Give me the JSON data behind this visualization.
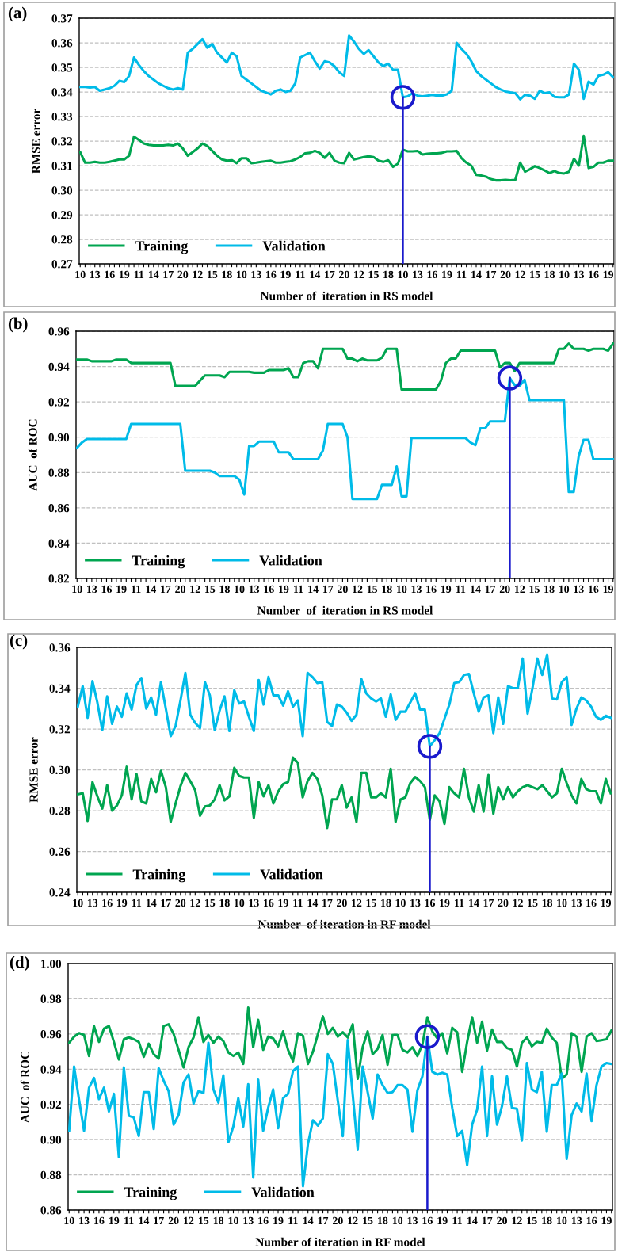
{
  "chart_data": [
    {
      "type": "line",
      "title": "(a)",
      "xlabel": "Number of  iteration in RS model",
      "ylabel": "RMSE error",
      "categories": [
        "10",
        null,
        null,
        "13",
        null,
        null,
        "16",
        null,
        null,
        "19",
        null,
        null,
        "11",
        null,
        null,
        "14",
        null,
        null,
        "17",
        null,
        null,
        "20",
        null,
        null,
        "12",
        null,
        null,
        "15",
        null,
        null,
        "18",
        null,
        null,
        "10",
        null,
        null,
        "13",
        null,
        null,
        "16",
        null,
        null,
        "19",
        null,
        null,
        "11",
        null,
        null,
        "14",
        null,
        null,
        "17",
        null,
        null,
        "20",
        null,
        null,
        "12",
        null,
        null,
        "15",
        null,
        null,
        "18",
        null,
        null,
        "10",
        null,
        null,
        "13",
        null,
        null,
        "16",
        null,
        null,
        "19",
        null,
        null,
        "11",
        null,
        null,
        "14",
        null,
        null,
        "17",
        null,
        null,
        "20",
        null,
        null,
        "12",
        null,
        null,
        "15",
        null,
        null,
        "18",
        null,
        null,
        "10",
        null,
        null,
        "13",
        null,
        null,
        "16",
        null,
        null,
        "19",
        null
      ],
      "series": [
        {
          "name": "Training",
          "color": "#00a550",
          "values": [
            0.3155,
            0.3112,
            0.3112,
            0.3115,
            0.3112,
            0.3112,
            0.3115,
            0.312,
            0.3125,
            0.3125,
            0.314,
            0.3218,
            0.3205,
            0.319,
            0.3185,
            0.3182,
            0.3182,
            0.3182,
            0.3185,
            0.3182,
            0.319,
            0.317,
            0.314,
            0.3155,
            0.317,
            0.319,
            0.318,
            0.316,
            0.314,
            0.3125,
            0.312,
            0.3122,
            0.311,
            0.313,
            0.313,
            0.311,
            0.3112,
            0.3115,
            0.3118,
            0.312,
            0.3112,
            0.3112,
            0.3115,
            0.3118,
            0.3125,
            0.3135,
            0.315,
            0.3152,
            0.316,
            0.3152,
            0.3132,
            0.3152,
            0.312,
            0.3112,
            0.311,
            0.3152,
            0.3125,
            0.313,
            0.3135,
            0.3138,
            0.3135,
            0.312,
            0.3115,
            0.3122,
            0.3095,
            0.3108,
            0.3165,
            0.3158,
            0.3158,
            0.316,
            0.3145,
            0.3148,
            0.315,
            0.315,
            0.3152,
            0.3158,
            0.3158,
            0.316,
            0.313,
            0.3112,
            0.31,
            0.3062,
            0.306,
            0.3055,
            0.3045,
            0.304,
            0.304,
            0.3042,
            0.304,
            0.3042,
            0.3112,
            0.3075,
            0.3085,
            0.3098,
            0.309,
            0.308,
            0.307,
            0.3078,
            0.307,
            0.3068,
            0.3075,
            0.3128,
            0.31,
            0.3222,
            0.309,
            0.3095,
            0.3112,
            0.3112,
            0.312,
            0.312
          ]
        },
        {
          "name": "Validation",
          "color": "#00bbe8",
          "values": [
            0.342,
            0.342,
            0.3418,
            0.342,
            0.3405,
            0.341,
            0.3415,
            0.3425,
            0.3445,
            0.344,
            0.3465,
            0.354,
            0.351,
            0.3485,
            0.3465,
            0.345,
            0.3435,
            0.3425,
            0.3415,
            0.341,
            0.3415,
            0.341,
            0.356,
            0.3575,
            0.3595,
            0.3615,
            0.358,
            0.3595,
            0.356,
            0.354,
            0.352,
            0.356,
            0.3545,
            0.3465,
            0.345,
            0.3435,
            0.342,
            0.3405,
            0.3398,
            0.339,
            0.3405,
            0.341,
            0.34,
            0.3405,
            0.3435,
            0.354,
            0.355,
            0.356,
            0.3525,
            0.3495,
            0.3525,
            0.352,
            0.3505,
            0.348,
            0.3465,
            0.363,
            0.3605,
            0.3575,
            0.3555,
            0.357,
            0.3545,
            0.352,
            0.3505,
            0.3515,
            0.349,
            0.349,
            0.3378,
            0.3382,
            0.3395,
            0.3385,
            0.3382,
            0.3385,
            0.3388,
            0.3385,
            0.3385,
            0.339,
            0.3405,
            0.36,
            0.3575,
            0.3555,
            0.3525,
            0.3485,
            0.3465,
            0.345,
            0.3435,
            0.342,
            0.341,
            0.3402,
            0.3398,
            0.3395,
            0.337,
            0.3388,
            0.3385,
            0.3372,
            0.3405,
            0.3395,
            0.3398,
            0.338,
            0.3378,
            0.3378,
            0.339,
            0.3515,
            0.349,
            0.3372,
            0.3442,
            0.343,
            0.3465,
            0.347,
            0.348,
            0.346
          ]
        }
      ],
      "ylim": [
        0.27,
        0.37
      ],
      "yticks": [
        0.27,
        0.28,
        0.29,
        {
          "value": 0.3,
          "label": "0.30"
        },
        0.31,
        0.32,
        0.33,
        0.34,
        0.35,
        0.36,
        0.37
      ],
      "grid": "y",
      "legend": "bottom left",
      "line_style": "solid"
    },
    {
      "type": "line",
      "title": "(b)",
      "xlabel": "Number  of  iteration in RS model",
      "ylabel": "AUC  of ROC",
      "categories": [
        "10",
        null,
        null,
        "13",
        null,
        null,
        "16",
        null,
        null,
        "19",
        null,
        null,
        "11",
        null,
        null,
        "14",
        null,
        null,
        "17",
        null,
        null,
        "20",
        null,
        null,
        "12",
        null,
        null,
        "15",
        null,
        null,
        "18",
        null,
        null,
        "10",
        null,
        null,
        "13",
        null,
        null,
        "16",
        null,
        null,
        "19",
        null,
        null,
        "11",
        null,
        null,
        "14",
        null,
        null,
        "17",
        null,
        null,
        "20",
        null,
        null,
        "12",
        null,
        null,
        "15",
        null,
        null,
        "18",
        null,
        null,
        "10",
        null,
        null,
        "13",
        null,
        null,
        "16",
        null,
        null,
        "19",
        null,
        null,
        "11",
        null,
        null,
        "14",
        null,
        null,
        "17",
        null,
        null,
        "20",
        null,
        null,
        "12",
        null,
        null,
        "15",
        null,
        null,
        "18",
        null,
        null,
        "10",
        null,
        null,
        "13",
        null,
        null,
        "16",
        null,
        null,
        "19",
        null
      ],
      "series": [
        {
          "name": "Training",
          "color": "#00a550",
          "values": [
            0.944,
            0.944,
            0.944,
            0.943,
            0.943,
            0.943,
            0.943,
            0.943,
            0.944,
            0.944,
            0.944,
            0.942,
            0.942,
            0.942,
            0.942,
            0.942,
            0.942,
            0.942,
            0.942,
            0.942,
            0.929,
            0.929,
            0.929,
            0.929,
            0.929,
            0.932,
            0.935,
            0.935,
            0.935,
            0.935,
            0.934,
            0.937,
            0.937,
            0.937,
            0.937,
            0.937,
            0.9365,
            0.9365,
            0.9365,
            0.938,
            0.938,
            0.938,
            0.938,
            0.939,
            0.934,
            0.934,
            0.942,
            0.943,
            0.943,
            0.939,
            0.95,
            0.95,
            0.95,
            0.95,
            0.95,
            0.9445,
            0.9445,
            0.943,
            0.9445,
            0.9435,
            0.9435,
            0.9435,
            0.945,
            0.95,
            0.95,
            0.95,
            0.927,
            0.927,
            0.927,
            0.927,
            0.927,
            0.927,
            0.927,
            0.927,
            0.932,
            0.942,
            0.9445,
            0.9445,
            0.949,
            0.949,
            0.949,
            0.949,
            0.949,
            0.949,
            0.949,
            0.949,
            0.9395,
            0.942,
            0.942,
            0.9375,
            0.942,
            0.942,
            0.942,
            0.942,
            0.942,
            0.942,
            0.942,
            0.942,
            0.95,
            0.95,
            0.953,
            0.95,
            0.95,
            0.95,
            0.949,
            0.95,
            0.95,
            0.95,
            0.949,
            0.953
          ]
        },
        {
          "name": "Validation",
          "color": "#00bbe8",
          "values": [
            0.894,
            0.897,
            0.899,
            0.899,
            0.899,
            0.899,
            0.899,
            0.899,
            0.899,
            0.899,
            0.899,
            0.9075,
            0.9075,
            0.9075,
            0.9075,
            0.9075,
            0.9075,
            0.9075,
            0.9075,
            0.9075,
            0.9075,
            0.9075,
            0.881,
            0.881,
            0.881,
            0.881,
            0.881,
            0.881,
            0.88,
            0.878,
            0.878,
            0.878,
            0.878,
            0.876,
            0.8675,
            0.895,
            0.895,
            0.8975,
            0.8975,
            0.8975,
            0.8975,
            0.8915,
            0.8915,
            0.8915,
            0.8875,
            0.8875,
            0.8875,
            0.8875,
            0.8875,
            0.8875,
            0.8925,
            0.9075,
            0.9075,
            0.9075,
            0.9075,
            0.9,
            0.865,
            0.865,
            0.865,
            0.865,
            0.865,
            0.865,
            0.873,
            0.873,
            0.873,
            0.8835,
            0.8665,
            0.8665,
            0.8995,
            0.8995,
            0.8995,
            0.8995,
            0.8995,
            0.8995,
            0.8995,
            0.8995,
            0.8995,
            0.8995,
            0.8995,
            0.8995,
            0.897,
            0.8955,
            0.905,
            0.905,
            0.909,
            0.909,
            0.909,
            0.909,
            0.9335,
            0.9295,
            0.929,
            0.9325,
            0.921,
            0.921,
            0.921,
            0.921,
            0.921,
            0.921,
            0.921,
            0.921,
            0.869,
            0.869,
            0.889,
            0.8985,
            0.8985,
            0.8875,
            0.8875,
            0.8875,
            0.8875,
            0.8875
          ]
        }
      ],
      "ylim": [
        0.82,
        0.96
      ],
      "yticks": [
        0.82,
        0.84,
        0.86,
        0.88,
        {
          "value": 0.9,
          "label": "0.90"
        },
        0.92,
        0.94,
        0.96
      ],
      "grid": "y",
      "legend": "bottom left",
      "line_style": "solid"
    },
    {
      "type": "line",
      "title": "(c)",
      "xlabel": "Number  of iteration in RF model",
      "ylabel": "RMSE error",
      "categories": [
        "10",
        null,
        null,
        "13",
        null,
        null,
        "16",
        null,
        null,
        "19",
        null,
        null,
        "11",
        null,
        null,
        "14",
        null,
        null,
        "17",
        null,
        null,
        "20",
        null,
        null,
        "12",
        null,
        null,
        "15",
        null,
        null,
        "18",
        null,
        null,
        "10",
        null,
        null,
        "13",
        null,
        null,
        "16",
        null,
        null,
        "19",
        null,
        null,
        "11",
        null,
        null,
        "14",
        null,
        null,
        "17",
        null,
        null,
        "20",
        null,
        null,
        "12",
        null,
        null,
        "15",
        null,
        null,
        "18",
        null,
        null,
        "10",
        null,
        null,
        "13",
        null,
        null,
        "16",
        null,
        null,
        "19",
        null,
        null,
        "11",
        null,
        null,
        "14",
        null,
        null,
        "17",
        null,
        null,
        "20",
        null,
        null,
        "12",
        null,
        null,
        "15",
        null,
        null,
        "18",
        null,
        null,
        "10",
        null,
        null,
        "13",
        null,
        null,
        "16",
        null,
        null,
        "19",
        null
      ],
      "series": [
        {
          "name": "Training",
          "color": "#00a550",
          "values": [
            0.288,
            0.2885,
            0.275,
            0.294,
            0.287,
            0.281,
            0.2925,
            0.28,
            0.2825,
            0.2875,
            0.3015,
            0.2855,
            0.298,
            0.2845,
            0.2835,
            0.2955,
            0.289,
            0.2995,
            0.2915,
            0.2745,
            0.2835,
            0.292,
            0.2985,
            0.2945,
            0.29,
            0.2775,
            0.282,
            0.2825,
            0.2855,
            0.2925,
            0.285,
            0.287,
            0.301,
            0.297,
            0.2962,
            0.2962,
            0.2765,
            0.294,
            0.287,
            0.2925,
            0.2835,
            0.2895,
            0.293,
            0.294,
            0.306,
            0.3035,
            0.2865,
            0.2945,
            0.2985,
            0.2955,
            0.2875,
            0.2715,
            0.2855,
            0.2855,
            0.2925,
            0.2815,
            0.2865,
            0.2745,
            0.2985,
            0.2985,
            0.2865,
            0.2865,
            0.2885,
            0.2865,
            0.3005,
            0.2745,
            0.2855,
            0.2865,
            0.2935,
            0.2965,
            0.2945,
            0.2915,
            0.2755,
            0.2875,
            0.2845,
            0.2735,
            0.2915,
            0.2885,
            0.2865,
            0.3005,
            0.2865,
            0.2795,
            0.2925,
            0.2795,
            0.2975,
            0.2785,
            0.2915,
            0.2855,
            0.2915,
            0.2865,
            0.2895,
            0.2915,
            0.2925,
            0.2915,
            0.2905,
            0.2925,
            0.2895,
            0.2865,
            0.2885,
            0.3005,
            0.2935,
            0.2875,
            0.2835,
            0.2955,
            0.2905,
            0.2895,
            0.2895,
            0.2835,
            0.2955,
            0.2885
          ]
        },
        {
          "name": "Validation",
          "color": "#00bbe8",
          "values": [
            0.331,
            0.341,
            0.3255,
            0.3435,
            0.333,
            0.3195,
            0.336,
            0.3225,
            0.331,
            0.326,
            0.3375,
            0.3295,
            0.3415,
            0.345,
            0.33,
            0.3355,
            0.327,
            0.343,
            0.33,
            0.3165,
            0.3215,
            0.334,
            0.3475,
            0.327,
            0.323,
            0.3205,
            0.343,
            0.3365,
            0.3195,
            0.329,
            0.336,
            0.319,
            0.339,
            0.3325,
            0.3335,
            0.326,
            0.319,
            0.344,
            0.332,
            0.3455,
            0.3365,
            0.3365,
            0.3315,
            0.3385,
            0.331,
            0.334,
            0.3165,
            0.3475,
            0.3455,
            0.3425,
            0.343,
            0.3235,
            0.3215,
            0.332,
            0.331,
            0.328,
            0.324,
            0.327,
            0.3445,
            0.3375,
            0.335,
            0.3335,
            0.335,
            0.326,
            0.337,
            0.3245,
            0.3285,
            0.3285,
            0.333,
            0.3375,
            0.3295,
            0.3295,
            0.3115,
            0.3145,
            0.318,
            0.325,
            0.332,
            0.3425,
            0.343,
            0.3465,
            0.347,
            0.3375,
            0.3285,
            0.3355,
            0.3365,
            0.318,
            0.3355,
            0.3225,
            0.341,
            0.34,
            0.34,
            0.3545,
            0.3275,
            0.34,
            0.3545,
            0.3465,
            0.3565,
            0.335,
            0.3345,
            0.343,
            0.3455,
            0.322,
            0.33,
            0.3355,
            0.334,
            0.331,
            0.326,
            0.3245,
            0.3265,
            0.3255
          ]
        }
      ],
      "ylim": [
        0.24,
        0.36
      ],
      "yticks": [
        0.24,
        0.26,
        0.28,
        {
          "value": 0.3,
          "label": "0.30"
        },
        0.32,
        0.34,
        0.36
      ],
      "grid": "y",
      "legend": "bottom left",
      "line_style": "solid"
    },
    {
      "type": "line",
      "title": "(d)",
      "xlabel": "Number of iteration in RF model",
      "ylabel": "AUC  of ROC",
      "categories": [
        "10",
        null,
        null,
        "13",
        null,
        null,
        "16",
        null,
        null,
        "19",
        null,
        null,
        "11",
        null,
        null,
        "14",
        null,
        null,
        "17",
        null,
        null,
        "20",
        null,
        null,
        "12",
        null,
        null,
        "15",
        null,
        null,
        "18",
        null,
        null,
        "10",
        null,
        null,
        "13",
        null,
        null,
        "16",
        null,
        null,
        "19",
        null,
        null,
        "11",
        null,
        null,
        "14",
        null,
        null,
        "17",
        null,
        null,
        "20",
        null,
        null,
        "12",
        null,
        null,
        "15",
        null,
        null,
        "18",
        null,
        null,
        "10",
        null,
        null,
        "13",
        null,
        null,
        "16",
        null,
        null,
        "19",
        null,
        null,
        "11",
        null,
        null,
        "14",
        null,
        null,
        "17",
        null,
        null,
        "20",
        null,
        null,
        "12",
        null,
        null,
        "15",
        null,
        null,
        "18",
        null,
        null,
        "10",
        null,
        null,
        "13",
        null,
        null,
        "16",
        null,
        null,
        "19",
        null
      ],
      "series": [
        {
          "name": "Training",
          "color": "#00a550",
          "values": [
            0.955,
            0.9585,
            0.9605,
            0.9595,
            0.9475,
            0.9645,
            0.9555,
            0.963,
            0.9645,
            0.9555,
            0.9455,
            0.957,
            0.958,
            0.957,
            0.9555,
            0.947,
            0.9545,
            0.9485,
            0.946,
            0.9645,
            0.9655,
            0.96,
            0.951,
            0.941,
            0.9525,
            0.958,
            0.9695,
            0.9555,
            0.9595,
            0.955,
            0.9585,
            0.956,
            0.9495,
            0.9475,
            0.9495,
            0.943,
            0.975,
            0.9525,
            0.968,
            0.951,
            0.9585,
            0.9575,
            0.953,
            0.9615,
            0.951,
            0.9445,
            0.9605,
            0.959,
            0.943,
            0.95,
            0.96,
            0.97,
            0.96,
            0.9635,
            0.9585,
            0.961,
            0.958,
            0.9655,
            0.9345,
            0.9525,
            0.9615,
            0.9485,
            0.9515,
            0.9595,
            0.9425,
            0.9595,
            0.9595,
            0.951,
            0.9495,
            0.9525,
            0.9475,
            0.954,
            0.9695,
            0.9615,
            0.9575,
            0.9605,
            0.949,
            0.9635,
            0.961,
            0.9385,
            0.9555,
            0.9695,
            0.955,
            0.967,
            0.9505,
            0.9625,
            0.9555,
            0.9555,
            0.952,
            0.951,
            0.9415,
            0.955,
            0.958,
            0.953,
            0.9555,
            0.955,
            0.963,
            0.958,
            0.955,
            0.9345,
            0.937,
            0.9605,
            0.9585,
            0.9385,
            0.9585,
            0.9605,
            0.956,
            0.9565,
            0.957,
            0.962
          ]
        },
        {
          "name": "Validation",
          "color": "#00bbe8",
          "values": [
            0.905,
            0.9415,
            0.9225,
            0.905,
            0.9295,
            0.935,
            0.923,
            0.9295,
            0.916,
            0.926,
            0.89,
            0.941,
            0.9135,
            0.9125,
            0.902,
            0.927,
            0.927,
            0.906,
            0.9405,
            0.9335,
            0.9275,
            0.9085,
            0.914,
            0.9325,
            0.937,
            0.9205,
            0.9275,
            0.9265,
            0.955,
            0.9285,
            0.921,
            0.9365,
            0.8985,
            0.9075,
            0.9235,
            0.9075,
            0.9315,
            0.8785,
            0.934,
            0.905,
            0.918,
            0.9285,
            0.9065,
            0.9235,
            0.926,
            0.939,
            0.9415,
            0.8735,
            0.8975,
            0.911,
            0.908,
            0.912,
            0.9485,
            0.943,
            0.922,
            0.902,
            0.9565,
            0.9255,
            0.8945,
            0.9415,
            0.927,
            0.912,
            0.937,
            0.931,
            0.9265,
            0.927,
            0.931,
            0.931,
            0.9285,
            0.9045,
            0.928,
            0.936,
            0.9585,
            0.9385,
            0.937,
            0.938,
            0.937,
            0.918,
            0.902,
            0.905,
            0.8855,
            0.9085,
            0.917,
            0.9415,
            0.902,
            0.936,
            0.9085,
            0.919,
            0.936,
            0.918,
            0.9175,
            0.8995,
            0.9435,
            0.9285,
            0.927,
            0.9385,
            0.9045,
            0.931,
            0.931,
            0.9375,
            0.889,
            0.914,
            0.9205,
            0.916,
            0.9375,
            0.9105,
            0.931,
            0.9415,
            0.9435,
            0.943
          ]
        }
      ],
      "ylim": [
        0.86,
        1.0
      ],
      "yticks": [
        0.86,
        0.88,
        {
          "value": 0.9,
          "label": "0.90"
        },
        0.92,
        0.94,
        0.96,
        0.98,
        {
          "value": 1.0,
          "label": "1.00"
        }
      ],
      "grid": "y",
      "legend": "bottom left",
      "line_style": "solid"
    }
  ]
}
